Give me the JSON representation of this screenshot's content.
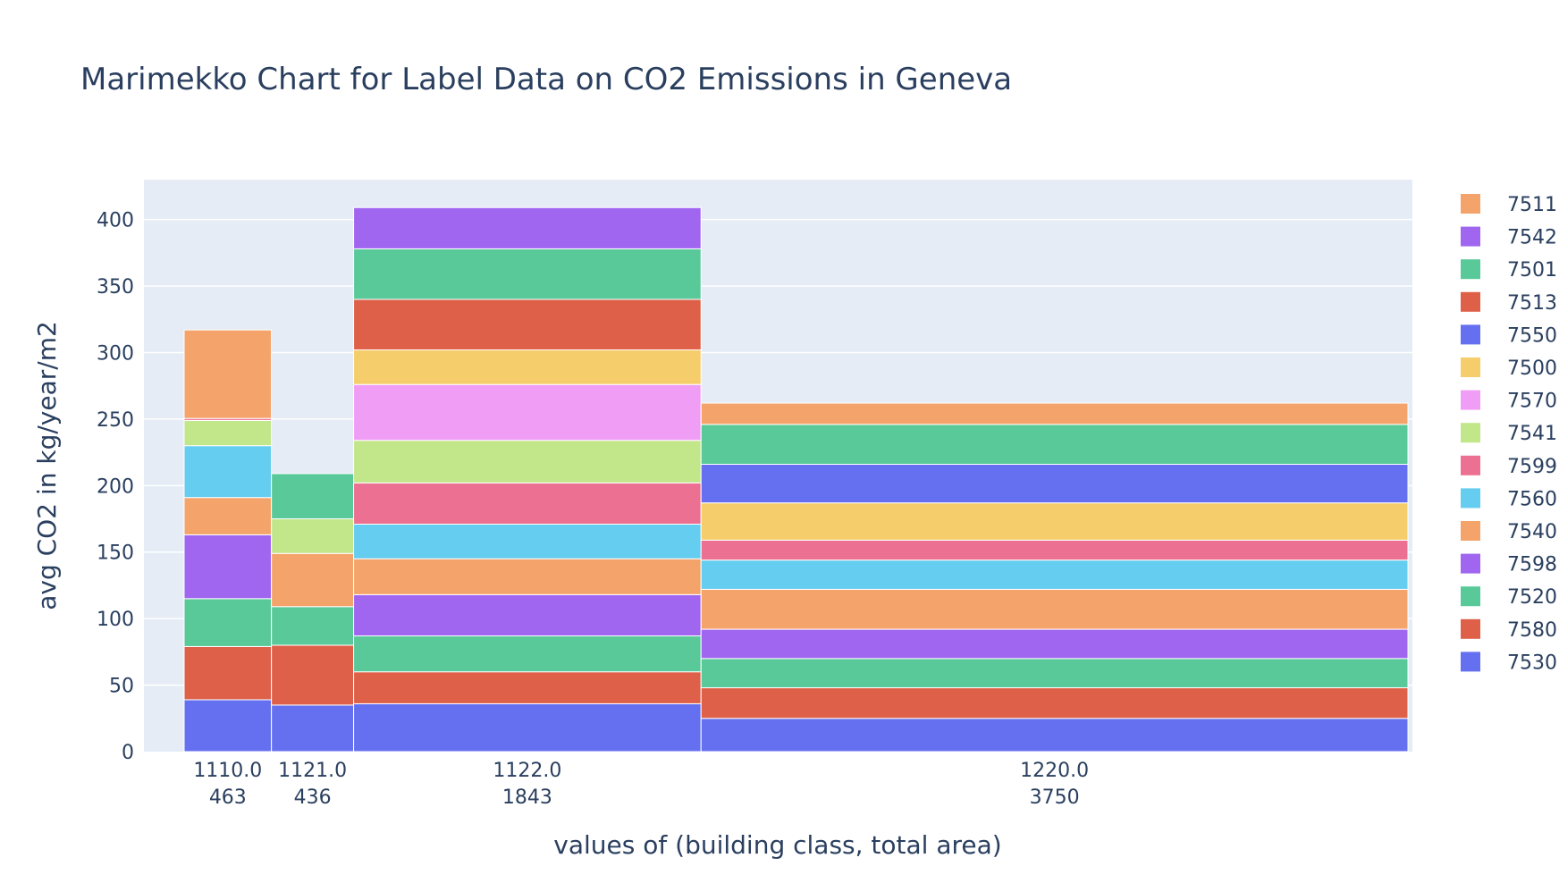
{
  "chart_data": {
    "type": "bar",
    "title": "Marimekko Chart for Label Data on CO2 Emissions in Geneva",
    "xlabel": "values of (building class, total area)",
    "ylabel": "avg CO2 in kg/year/m2",
    "ylim": [
      0,
      430
    ],
    "yticks": [
      0,
      50,
      100,
      150,
      200,
      250,
      300,
      350,
      400
    ],
    "grid": true,
    "legend_position": "right",
    "plot_background": "#e5ecf6",
    "columns": [
      {
        "class_label": "1110.0",
        "area_label": "463",
        "width": 463
      },
      {
        "class_label": "1121.0",
        "area_label": "436",
        "width": 436
      },
      {
        "class_label": "1122.0",
        "area_label": "1843",
        "width": 1843
      },
      {
        "class_label": "1220.0",
        "area_label": "3750",
        "width": 3750
      }
    ],
    "legend": [
      {
        "name": "7511",
        "color": "#f4a46a"
      },
      {
        "name": "7542",
        "color": "#a066f0"
      },
      {
        "name": "7501",
        "color": "#5ac99a"
      },
      {
        "name": "7513",
        "color": "#df6048"
      },
      {
        "name": "7550",
        "color": "#6470f0"
      },
      {
        "name": "7500",
        "color": "#f5cd6a"
      },
      {
        "name": "7570",
        "color": "#f09ef5"
      },
      {
        "name": "7541",
        "color": "#c2e68a"
      },
      {
        "name": "7599",
        "color": "#ec7091"
      },
      {
        "name": "7560",
        "color": "#64cdf0"
      },
      {
        "name": "7540",
        "color": "#f4a46a"
      },
      {
        "name": "7598",
        "color": "#a066f0"
      },
      {
        "name": "7520",
        "color": "#5ac99a"
      },
      {
        "name": "7580",
        "color": "#df6048"
      },
      {
        "name": "7530",
        "color": "#6470f0"
      }
    ],
    "stacks": [
      [
        {
          "name": "7530",
          "value": 39
        },
        {
          "name": "7580",
          "value": 40
        },
        {
          "name": "7520",
          "value": 36
        },
        {
          "name": "7598",
          "value": 48
        },
        {
          "name": "7540",
          "value": 28
        },
        {
          "name": "7560",
          "value": 39
        },
        {
          "name": "7541",
          "value": 19
        },
        {
          "name": "7599",
          "value": 1.5
        },
        {
          "name": "7511",
          "value": 66.5
        }
      ],
      [
        {
          "name": "7530",
          "value": 35
        },
        {
          "name": "7580",
          "value": 45
        },
        {
          "name": "7520",
          "value": 29
        },
        {
          "name": "7540",
          "value": 40
        },
        {
          "name": "7541",
          "value": 26
        },
        {
          "name": "7520",
          "value": 34
        }
      ],
      [
        {
          "name": "7530",
          "value": 36
        },
        {
          "name": "7580",
          "value": 24
        },
        {
          "name": "7520",
          "value": 27
        },
        {
          "name": "7598",
          "value": 31
        },
        {
          "name": "7540",
          "value": 27
        },
        {
          "name": "7560",
          "value": 26
        },
        {
          "name": "7599",
          "value": 31
        },
        {
          "name": "7541",
          "value": 32
        },
        {
          "name": "7570",
          "value": 42
        },
        {
          "name": "7500",
          "value": 26
        },
        {
          "name": "7513",
          "value": 38
        },
        {
          "name": "7501",
          "value": 38
        },
        {
          "name": "7542",
          "value": 31
        }
      ],
      [
        {
          "name": "7530",
          "value": 25
        },
        {
          "name": "7580",
          "value": 23
        },
        {
          "name": "7520",
          "value": 22
        },
        {
          "name": "7598",
          "value": 22
        },
        {
          "name": "7540",
          "value": 30
        },
        {
          "name": "7560",
          "value": 22
        },
        {
          "name": "7599",
          "value": 15
        },
        {
          "name": "7500",
          "value": 28
        },
        {
          "name": "7550",
          "value": 29
        },
        {
          "name": "7501",
          "value": 30
        },
        {
          "name": "7511",
          "value": 16
        }
      ]
    ]
  }
}
